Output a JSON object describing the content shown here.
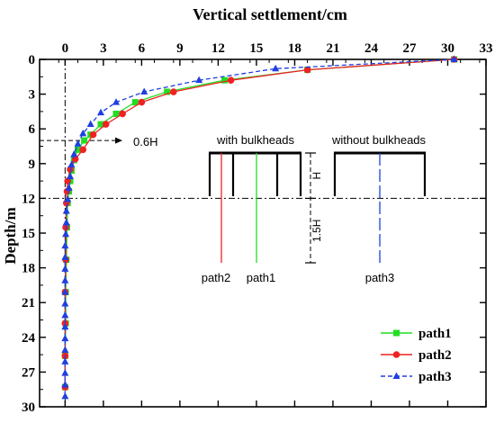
{
  "chart_data": {
    "type": "line",
    "xlabel": "Vertical settlement/cm",
    "ylabel": "Depth/m",
    "xlim": [
      -2,
      33
    ],
    "ylim": [
      0,
      30
    ],
    "x_axis_position": "top",
    "y_inverted": true,
    "x_ticks": [
      0,
      3,
      6,
      9,
      12,
      15,
      18,
      21,
      24,
      27,
      30,
      33
    ],
    "y_ticks": [
      0,
      3,
      6,
      9,
      12,
      15,
      18,
      21,
      24,
      27,
      30
    ],
    "grid": false,
    "legend_position": "bottom-right",
    "series": [
      {
        "name": "path1",
        "color": "#22dd22",
        "marker": "square",
        "dash": "solid",
        "points": [
          [
            30.5,
            0
          ],
          [
            19,
            0.9
          ],
          [
            12.5,
            1.8
          ],
          [
            8,
            2.8
          ],
          [
            5.5,
            3.7
          ],
          [
            4,
            4.7
          ],
          [
            2.8,
            5.6
          ],
          [
            2,
            6.5
          ],
          [
            1.5,
            7
          ],
          [
            1,
            7.8
          ],
          [
            0.7,
            8.7
          ],
          [
            0.5,
            9.6
          ],
          [
            0.4,
            10.5
          ],
          [
            0.3,
            11.4
          ],
          [
            0.2,
            12.4
          ],
          [
            0.15,
            14.5
          ],
          [
            0.1,
            17.3
          ],
          [
            0.05,
            20.1
          ],
          [
            0.05,
            22.8
          ],
          [
            0,
            25.6
          ],
          [
            0,
            28.3
          ]
        ]
      },
      {
        "name": "path2",
        "color": "#ee2222",
        "marker": "circle",
        "dash": "solid",
        "points": [
          [
            30.5,
            0
          ],
          [
            19,
            0.9
          ],
          [
            13,
            1.8
          ],
          [
            8.5,
            2.8
          ],
          [
            6,
            3.7
          ],
          [
            4.5,
            4.7
          ],
          [
            3.2,
            5.6
          ],
          [
            2.2,
            6.5
          ],
          [
            1.4,
            7.8
          ],
          [
            0.8,
            8.6
          ],
          [
            0.4,
            9.5
          ],
          [
            0.2,
            10.5
          ],
          [
            0.15,
            11.4
          ],
          [
            0.1,
            12.4
          ],
          [
            0.05,
            14.5
          ],
          [
            0.05,
            17.3
          ],
          [
            0,
            20.1
          ],
          [
            0,
            22.8
          ],
          [
            0,
            25.6
          ],
          [
            0,
            28.3
          ]
        ]
      },
      {
        "name": "path3",
        "color": "#1f3fe0",
        "marker": "triangle",
        "dash": "dashed",
        "points": [
          [
            30.5,
            0
          ],
          [
            16.5,
            0.8
          ],
          [
            10.5,
            1.8
          ],
          [
            6.2,
            2.8
          ],
          [
            4,
            3.7
          ],
          [
            2.8,
            4.6
          ],
          [
            2,
            5.6
          ],
          [
            1.4,
            6.4
          ],
          [
            1,
            7.3
          ],
          [
            0.7,
            8.2
          ],
          [
            0.5,
            9.1
          ],
          [
            0.4,
            10.1
          ],
          [
            0.3,
            11.1
          ],
          [
            0.2,
            12.1
          ],
          [
            0.1,
            13.1
          ],
          [
            0.1,
            14.1
          ],
          [
            0.05,
            15.1
          ],
          [
            0,
            16.1
          ],
          [
            0,
            17.1
          ],
          [
            0,
            18.1
          ],
          [
            0,
            19.1
          ],
          [
            0,
            20.1
          ],
          [
            0,
            21.1
          ],
          [
            0,
            22.1
          ],
          [
            0,
            23.1
          ],
          [
            0,
            24.1
          ],
          [
            0,
            25.1
          ],
          [
            0,
            26.1
          ],
          [
            0,
            27.1
          ],
          [
            0,
            28.1
          ],
          [
            0,
            29.1
          ]
        ]
      }
    ],
    "annotations": {
      "reference_label": "0.6H",
      "reference_depth": 7,
      "bulkhead_depth": 12,
      "zero_line_x": 0,
      "with_bulkheads": "with bulkheads",
      "without_bulkheads": "without bulkheads",
      "dim_h": "H",
      "dim_15h": "1.5H",
      "path_labels": [
        "path2",
        "path1",
        "path3"
      ]
    }
  }
}
